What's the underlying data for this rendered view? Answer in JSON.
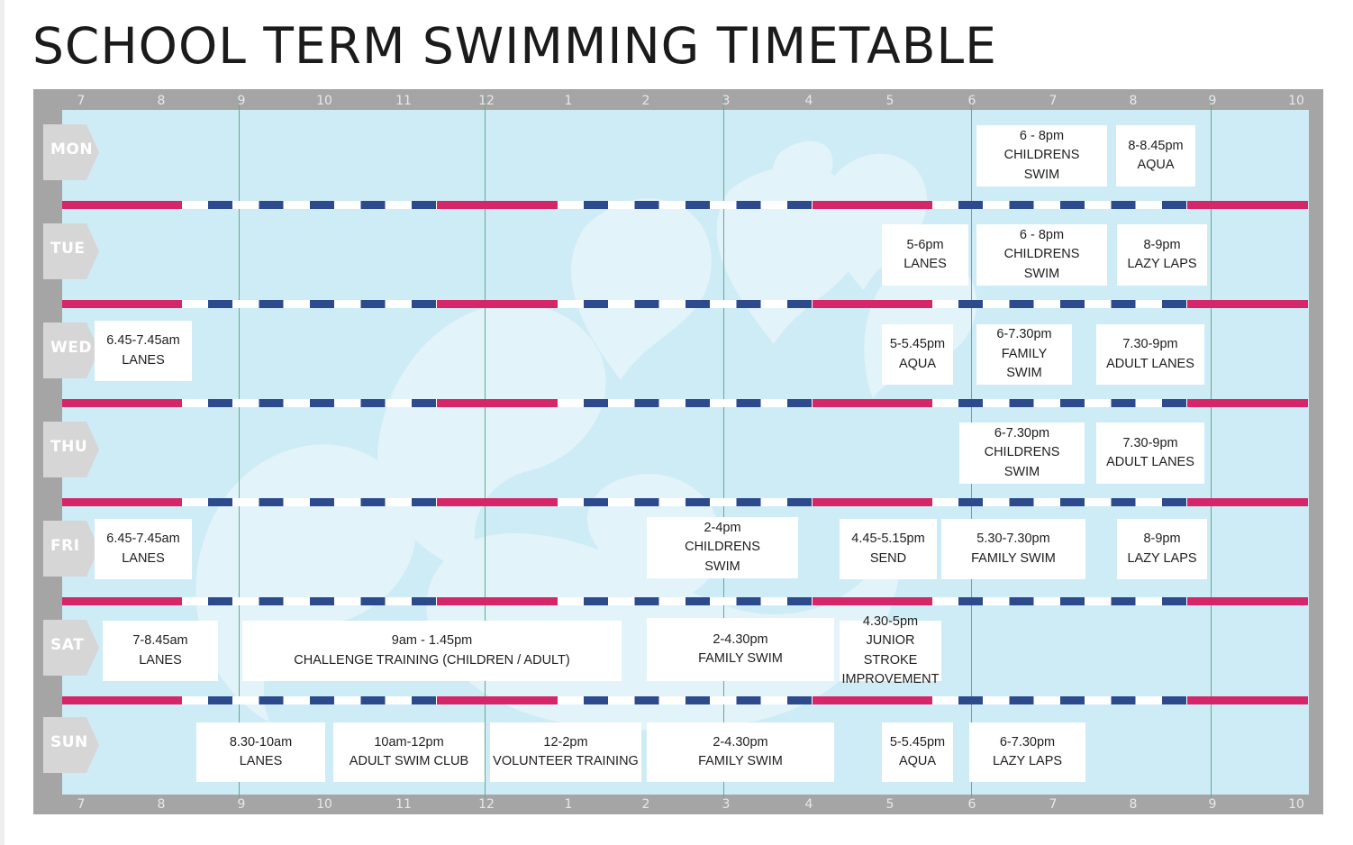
{
  "title": "SCHOOL TERM SWIMMING TIMETABLE",
  "colors": {
    "pool": "#ceecf6",
    "frame": "#a5a5a5",
    "rope_pink": "#d6266a",
    "rope_navy": "#2c4a8c",
    "hour_line": "#5fae8a",
    "day_tag": "#d6d6d6"
  },
  "icons": [
    "splash-watermark",
    "lane-rope",
    "day-tag-arrow"
  ],
  "hours": [
    "7",
    "8",
    "9",
    "10",
    "11",
    "12",
    "1",
    "2",
    "3",
    "4",
    "5",
    "6",
    "7",
    "8",
    "9",
    "10"
  ],
  "days": [
    {
      "label": "MON",
      "sessions": [
        {
          "time": "6 - 8pm",
          "name": "CHILDRENS SWIM",
          "lines": [
            "6 - 8pm",
            "CHILDRENS",
            "SWIM"
          ]
        },
        {
          "time": "8-8.45pm",
          "name": "AQUA",
          "lines": [
            "8-8.45pm",
            "AQUA"
          ]
        }
      ]
    },
    {
      "label": "TUE",
      "sessions": [
        {
          "time": "5-6pm",
          "name": "LANES",
          "lines": [
            "5-6pm",
            "LANES"
          ]
        },
        {
          "time": "6 - 8pm",
          "name": "CHILDRENS SWIM",
          "lines": [
            "6 - 8pm",
            "CHILDRENS",
            "SWIM"
          ]
        },
        {
          "time": "8-9pm",
          "name": "LAZY LAPS",
          "lines": [
            "8-9pm",
            "LAZY LAPS"
          ]
        }
      ]
    },
    {
      "label": "WED",
      "sessions": [
        {
          "time": "6.45-7.45am",
          "name": "LANES",
          "lines": [
            "6.45-7.45am",
            "LANES"
          ]
        },
        {
          "time": "5-5.45pm",
          "name": "AQUA",
          "lines": [
            "5-5.45pm",
            "AQUA"
          ]
        },
        {
          "time": "6-7.30pm",
          "name": "FAMILY SWIM",
          "lines": [
            "6-7.30pm",
            "FAMILY",
            "SWIM"
          ]
        },
        {
          "time": "7.30-9pm",
          "name": "ADULT LANES",
          "lines": [
            "7.30-9pm",
            "ADULT LANES"
          ]
        }
      ]
    },
    {
      "label": "THU",
      "sessions": [
        {
          "time": "6-7.30pm",
          "name": "CHILDRENS SWIM",
          "lines": [
            "6-7.30pm",
            "CHILDRENS",
            "SWIM"
          ]
        },
        {
          "time": "7.30-9pm",
          "name": "ADULT LANES",
          "lines": [
            "7.30-9pm",
            "ADULT LANES"
          ]
        }
      ]
    },
    {
      "label": "FRI",
      "sessions": [
        {
          "time": "6.45-7.45am",
          "name": "LANES",
          "lines": [
            "6.45-7.45am",
            "LANES"
          ]
        },
        {
          "time": "2-4pm",
          "name": "CHILDRENS SWIM",
          "lines": [
            "2-4pm",
            "CHILDRENS",
            "SWIM"
          ]
        },
        {
          "time": "4.45-5.15pm",
          "name": "SEND",
          "lines": [
            "4.45-5.15pm",
            "SEND"
          ]
        },
        {
          "time": "5.30-7.30pm",
          "name": "FAMILY SWIM",
          "lines": [
            "5.30-7.30pm",
            "FAMILY SWIM"
          ]
        },
        {
          "time": "8-9pm",
          "name": "LAZY LAPS",
          "lines": [
            "8-9pm",
            "LAZY LAPS"
          ]
        }
      ]
    },
    {
      "label": "SAT",
      "sessions": [
        {
          "time": "7-8.45am",
          "name": "LANES",
          "lines": [
            "7-8.45am",
            "LANES"
          ]
        },
        {
          "time": "9am - 1.45pm",
          "name": "CHALLENGE TRAINING (CHILDREN / ADULT)",
          "lines": [
            "9am - 1.45pm",
            "CHALLENGE TRAINING (CHILDREN / ADULT)"
          ]
        },
        {
          "time": "2-4.30pm",
          "name": "FAMILY SWIM",
          "lines": [
            "2-4.30pm",
            "FAMILY SWIM"
          ]
        },
        {
          "time": "4.30-5pm",
          "name": "JUNIOR STROKE IMPROVEMENT",
          "lines": [
            "4.30-5pm",
            "JUNIOR STROKE",
            "IMPROVEMENT"
          ]
        }
      ]
    },
    {
      "label": "SUN",
      "sessions": [
        {
          "time": "8.30-10am",
          "name": "LANES",
          "lines": [
            "8.30-10am",
            "LANES"
          ]
        },
        {
          "time": "10am-12pm",
          "name": "ADULT SWIM CLUB",
          "lines": [
            "10am-12pm",
            "ADULT SWIM CLUB"
          ]
        },
        {
          "time": "12-2pm",
          "name": "VOLUNTEER TRAINING",
          "lines": [
            "12-2pm",
            "VOLUNTEER TRAINING"
          ]
        },
        {
          "time": "2-4.30pm",
          "name": "FAMILY SWIM",
          "lines": [
            "2-4.30pm",
            "FAMILY SWIM"
          ]
        },
        {
          "time": "5-5.45pm",
          "name": "AQUA",
          "lines": [
            "5-5.45pm",
            "AQUA"
          ]
        },
        {
          "time": "6-7.30pm",
          "name": "LAZY LAPS",
          "lines": [
            "6-7.30pm",
            "LAZY LAPS"
          ]
        }
      ]
    }
  ]
}
